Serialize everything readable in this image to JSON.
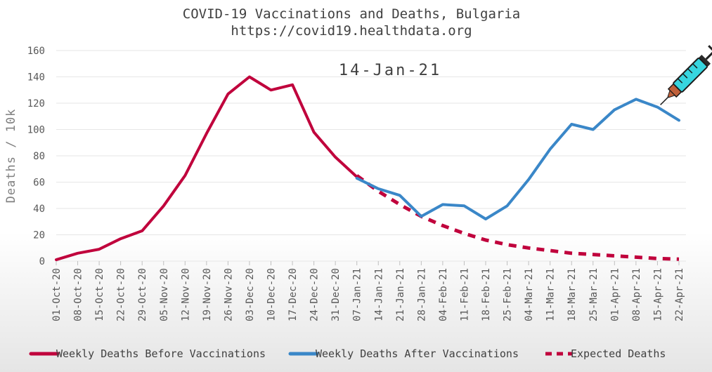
{
  "chart_data": {
    "type": "line",
    "title": "COVID-19 Vaccinations and Deaths, Bulgaria",
    "subtitle": "https://covid19.healthdata.org",
    "ylabel": "Deaths / 10k",
    "xlabel": "",
    "ylim": [
      0,
      160
    ],
    "yticks": [
      0,
      20,
      40,
      60,
      80,
      100,
      120,
      140,
      160
    ],
    "categories": [
      "01-Oct-20",
      "08-Oct-20",
      "15-Oct-20",
      "22-Oct-20",
      "29-Oct-20",
      "05-Nov-20",
      "12-Nov-20",
      "19-Nov-20",
      "26-Nov-20",
      "03-Dec-20",
      "10-Dec-20",
      "17-Dec-20",
      "24-Dec-20",
      "31-Dec-20",
      "07-Jan-21",
      "14-Jan-21",
      "21-Jan-21",
      "28-Jan-21",
      "04-Feb-21",
      "11-Feb-21",
      "18-Feb-21",
      "25-Feb-21",
      "04-Mar-21",
      "11-Mar-21",
      "18-Mar-21",
      "25-Mar-21",
      "01-Apr-21",
      "08-Apr-21",
      "15-Apr-21",
      "22-Apr-21"
    ],
    "series": [
      {
        "name": "Weekly Deaths Before Vaccinations",
        "color": "#c0003c",
        "dash": "solid",
        "values": [
          1,
          6,
          9,
          17,
          23,
          42,
          65,
          97,
          127,
          140,
          130,
          134,
          98,
          79,
          64,
          null,
          null,
          null,
          null,
          null,
          null,
          null,
          null,
          null,
          null,
          null,
          null,
          null,
          null,
          null
        ]
      },
      {
        "name": "Weekly Deaths After Vaccinations",
        "color": "#3a87c8",
        "dash": "solid",
        "values": [
          null,
          null,
          null,
          null,
          null,
          null,
          null,
          null,
          null,
          null,
          null,
          null,
          null,
          null,
          63,
          55,
          50,
          34,
          43,
          42,
          32,
          42,
          62,
          85,
          104,
          100,
          115,
          123,
          117,
          107
        ]
      },
      {
        "name": "Expected Deaths",
        "color": "#c0003c",
        "dash": "dashed",
        "values": [
          null,
          null,
          null,
          null,
          null,
          null,
          null,
          null,
          null,
          null,
          null,
          null,
          null,
          null,
          65,
          53,
          43,
          34,
          27,
          21,
          16,
          12.5,
          10,
          8,
          6,
          5,
          4,
          3,
          2,
          1.5
        ]
      }
    ],
    "annotations": [
      {
        "text": "14-Jan-21"
      }
    ],
    "legend_position": "bottom",
    "icon": "syringe-icon"
  }
}
